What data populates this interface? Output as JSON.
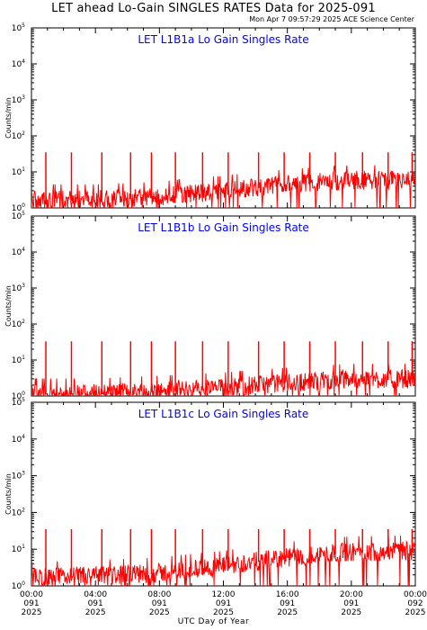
{
  "title": "LET ahead Lo-Gain SINGLES RATES Data for 2025-091",
  "timestamp": "Mon Apr  7 09:57:29 2025 ACE Science Center",
  "x_axis_title": "UTC Day of Year",
  "colors": {
    "data": "#ff0000",
    "panel_title": "#0000ff",
    "axes": "#000000"
  },
  "chart_data": [
    {
      "type": "line",
      "title": "LET L1B1a Lo Gain Singles Rate",
      "ylabel": "Counts/min",
      "yscale": "log",
      "ylim": [
        1,
        100000
      ],
      "xlim": [
        0,
        24
      ],
      "series": [
        {
          "x_unit": "hours",
          "y_unit": "counts/min",
          "baseline": [
            [
              0,
              1.6
            ],
            [
              4,
              1.6
            ],
            [
              8,
              1.9
            ],
            [
              12,
              2.8
            ],
            [
              16,
              4.2
            ],
            [
              20,
              5.5
            ],
            [
              24,
              5.5
            ]
          ],
          "spikes_hours": [
            0.9,
            2.5,
            4.4,
            6.2,
            7.5,
            9.0,
            10.7,
            12.3,
            14.2,
            15.8,
            17.4,
            19.0,
            20.7,
            22.3,
            23.8
          ],
          "spike_peak": 35
        }
      ]
    },
    {
      "type": "line",
      "title": "LET L1B1b Lo Gain Singles Rate",
      "ylabel": "Counts/min",
      "yscale": "log",
      "ylim": [
        1,
        100000
      ],
      "xlim": [
        0,
        24
      ],
      "series": [
        {
          "x_unit": "hours",
          "y_unit": "counts/min",
          "baseline": [
            [
              0,
              1.1
            ],
            [
              4,
              1.1
            ],
            [
              8,
              1.3
            ],
            [
              12,
              1.6
            ],
            [
              16,
              2.2
            ],
            [
              20,
              2.8
            ],
            [
              24,
              2.8
            ]
          ],
          "spikes_hours": [
            0.9,
            2.5,
            4.4,
            6.2,
            7.5,
            9.0,
            10.7,
            12.3,
            14.2,
            15.8,
            17.4,
            19.0,
            20.7,
            22.3,
            23.8
          ],
          "spike_peak": 33
        }
      ]
    },
    {
      "type": "line",
      "title": "LET L1B1c Lo Gain Singles Rate",
      "ylabel": "Counts/min",
      "yscale": "log",
      "ylim": [
        1,
        100000
      ],
      "xlim": [
        0,
        24
      ],
      "series": [
        {
          "x_unit": "hours",
          "y_unit": "counts/min",
          "baseline": [
            [
              0,
              1.6
            ],
            [
              4,
              1.8
            ],
            [
              8,
              2.1
            ],
            [
              12,
              3.2
            ],
            [
              16,
              5.5
            ],
            [
              20,
              8.0
            ],
            [
              24,
              8.5
            ]
          ],
          "spikes_hours": [
            0.9,
            2.5,
            4.4,
            6.2,
            7.5,
            9.0,
            10.7,
            12.3,
            14.2,
            15.8,
            17.4,
            19.0,
            20.7,
            22.3,
            23.8
          ],
          "spike_peak": 35
        }
      ]
    }
  ],
  "y_ticks": [
    {
      "value": 1,
      "label": "10",
      "exp": "0"
    },
    {
      "value": 10,
      "label": "10",
      "exp": "1"
    },
    {
      "value": 100,
      "label": "10",
      "exp": "2"
    },
    {
      "value": 1000,
      "label": "10",
      "exp": "3"
    },
    {
      "value": 10000,
      "label": "10",
      "exp": "4"
    },
    {
      "value": 100000,
      "label": "10",
      "exp": "5"
    }
  ],
  "x_ticks": [
    {
      "hour": 0,
      "time": "00:00",
      "day": "091",
      "year": "2025"
    },
    {
      "hour": 4,
      "time": "04:00",
      "day": "091",
      "year": "2025"
    },
    {
      "hour": 8,
      "time": "08:00",
      "day": "091",
      "year": "2025"
    },
    {
      "hour": 12,
      "time": "12:00",
      "day": "091",
      "year": "2025"
    },
    {
      "hour": 16,
      "time": "16:00",
      "day": "091",
      "year": "2025"
    },
    {
      "hour": 20,
      "time": "20:00",
      "day": "091",
      "year": "2025"
    },
    {
      "hour": 24,
      "time": "00:00",
      "day": "092",
      "year": "2025"
    }
  ]
}
